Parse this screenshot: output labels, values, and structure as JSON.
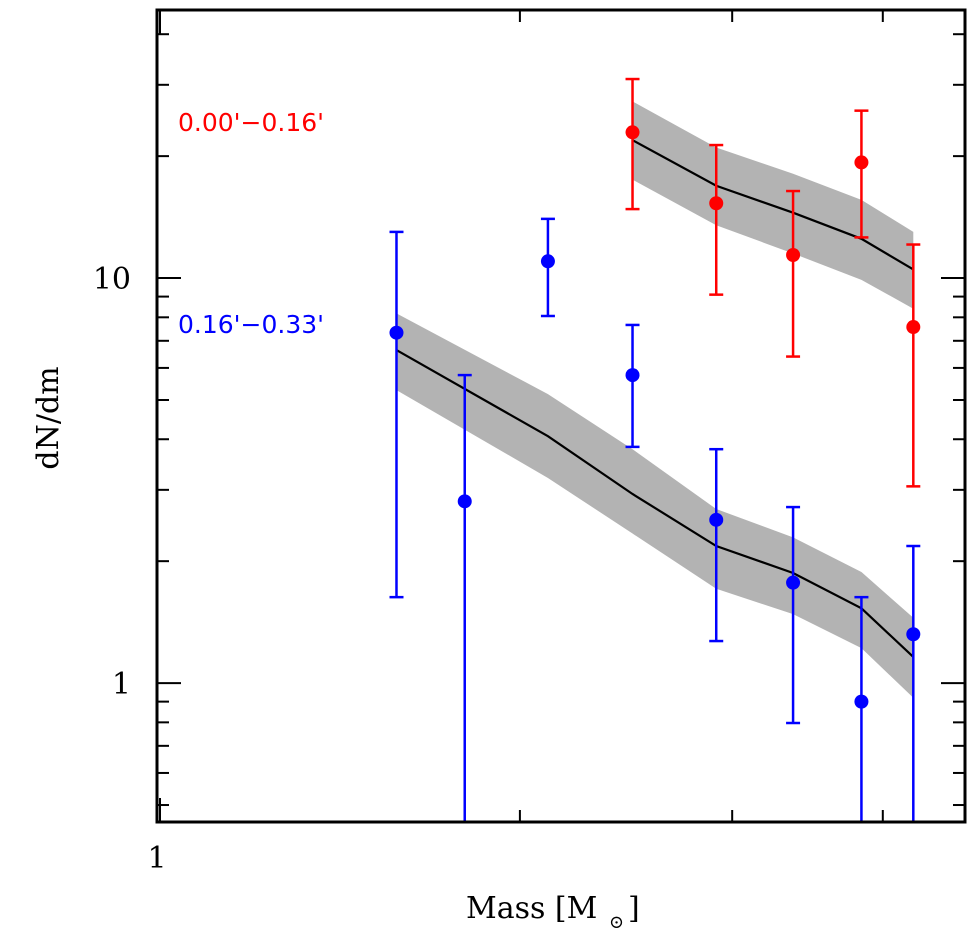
{
  "chart_data": {
    "type": "scatter",
    "title": "",
    "xlabel": "Mass [M⊙]",
    "xlabel_main": "Mass [M",
    "xlabel_sub": "⊙",
    "xlabel_close": "]",
    "ylabel": "dN/dm",
    "xscale": "log",
    "yscale": "log",
    "xlim": [
      1,
      4.68
    ],
    "ylim": [
      0.454,
      45.9
    ],
    "x_tick_labels": [
      {
        "value": 1,
        "label": "1"
      }
    ],
    "x_minor_ticks": [
      2,
      3,
      4
    ],
    "y_tick_labels": [
      {
        "value": 1,
        "label": "1"
      },
      {
        "value": 10,
        "label": "10"
      }
    ],
    "y_minor_ticks": [
      0.5,
      0.6,
      0.7,
      0.8,
      0.9,
      2,
      3,
      4,
      5,
      6,
      7,
      8,
      9,
      20,
      30,
      40
    ],
    "grid": false,
    "legend": "none",
    "series": [
      {
        "name": "0.00'−0.16'",
        "color": "#ff0000",
        "points": [
          {
            "x": 2.48,
            "y": 22.9,
            "ylo": 14.8,
            "yhi": 31.0
          },
          {
            "x": 2.91,
            "y": 15.3,
            "ylo": 9.1,
            "yhi": 21.3
          },
          {
            "x": 3.37,
            "y": 11.4,
            "ylo": 6.4,
            "yhi": 16.4
          },
          {
            "x": 3.84,
            "y": 19.3,
            "ylo": 12.6,
            "yhi": 25.9
          },
          {
            "x": 4.24,
            "y": 7.57,
            "ylo": 3.06,
            "yhi": 12.1
          }
        ],
        "model": {
          "x": [
            2.48,
            2.91,
            3.37,
            3.84,
            4.24
          ],
          "y": [
            21.9,
            16.9,
            14.5,
            12.5,
            10.5
          ],
          "y_upper": [
            27.3,
            21.0,
            18.1,
            15.6,
            13.0
          ],
          "y_lower": [
            17.5,
            13.5,
            11.5,
            9.9,
            8.4
          ]
        }
      },
      {
        "name": "0.16'−0.33'",
        "color": "#0000ff",
        "points": [
          {
            "x": 1.58,
            "y": 7.33,
            "ylo": 1.63,
            "yhi": 13.0
          },
          {
            "x": 1.8,
            "y": 2.81,
            "ylo": 0.3,
            "yhi": 5.76
          },
          {
            "x": 2.11,
            "y": 11.0,
            "ylo": 8.06,
            "yhi": 14.0
          },
          {
            "x": 2.48,
            "y": 5.76,
            "ylo": 3.83,
            "yhi": 7.66
          },
          {
            "x": 2.91,
            "y": 2.53,
            "ylo": 1.27,
            "yhi": 3.78
          },
          {
            "x": 3.37,
            "y": 1.77,
            "ylo": 0.797,
            "yhi": 2.72
          },
          {
            "x": 3.84,
            "y": 0.9,
            "ylo": 0.3,
            "yhi": 1.63
          },
          {
            "x": 4.24,
            "y": 1.32,
            "ylo": 0.454,
            "yhi": 2.18
          }
        ],
        "model": {
          "x": [
            1.58,
            2.11,
            2.48,
            2.91,
            3.37,
            3.84,
            4.24
          ],
          "y": [
            6.64,
            4.07,
            2.93,
            2.18,
            1.87,
            1.53,
            1.16
          ],
          "y_upper": [
            8.18,
            5.17,
            3.78,
            2.69,
            2.29,
            1.88,
            1.45
          ],
          "y_lower": [
            5.29,
            3.21,
            2.34,
            1.71,
            1.48,
            1.22,
            0.92
          ]
        }
      }
    ],
    "band_color": "#b3b3b3",
    "model_line_color": "#000000",
    "annotations": [
      {
        "text": "0.00'−0.16'",
        "color": "#ff0000",
        "series": 0
      },
      {
        "text": "0.16'−0.33'",
        "color": "#0000ff",
        "series": 1
      }
    ]
  }
}
